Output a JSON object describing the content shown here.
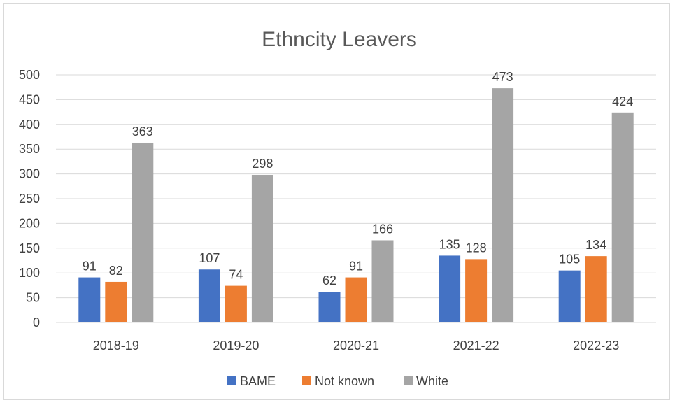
{
  "chart_data": {
    "type": "bar",
    "title": "Ethncity Leavers",
    "categories": [
      "2018-19",
      "2019-20",
      "2020-21",
      "2021-22",
      "2022-23"
    ],
    "series": [
      {
        "name": "BAME",
        "values": [
          91,
          107,
          62,
          135,
          105
        ],
        "color": "#4472C4"
      },
      {
        "name": "Not known",
        "values": [
          82,
          74,
          91,
          128,
          134
        ],
        "color": "#ED7D31"
      },
      {
        "name": "White",
        "values": [
          363,
          298,
          166,
          473,
          424
        ],
        "color": "#A5A5A5"
      }
    ],
    "ylim": [
      0,
      500
    ],
    "yticks": [
      0,
      50,
      100,
      150,
      200,
      250,
      300,
      350,
      400,
      450,
      500
    ],
    "grid": true,
    "data_labels": true,
    "legend_position": "bottom"
  }
}
